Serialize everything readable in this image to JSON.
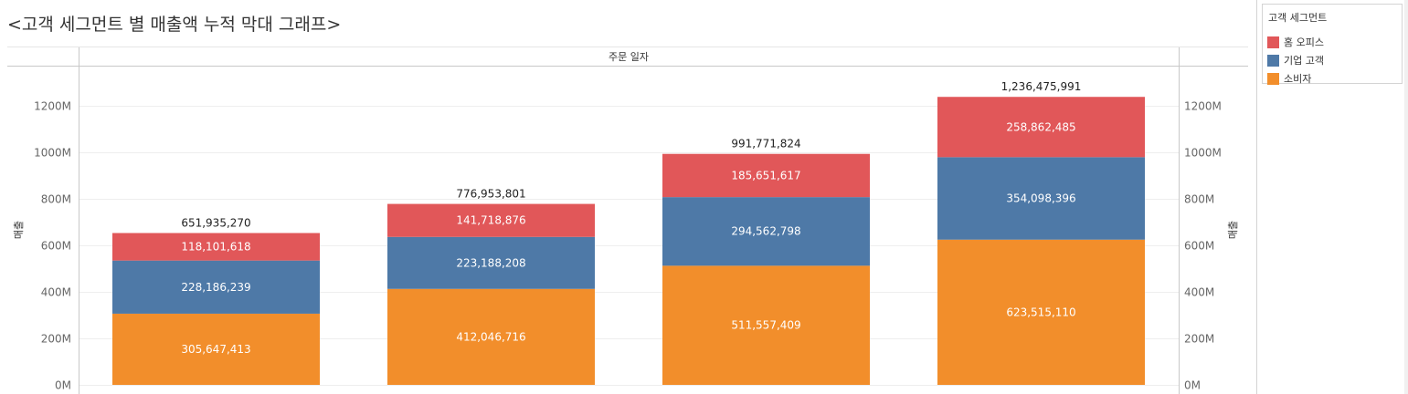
{
  "title": "<고객 세그먼트 별 매출액 누적 막대 그래프>",
  "legend": {
    "title": "고객 세그먼트",
    "items": [
      {
        "label": "홈 오피스",
        "color": "#e15759"
      },
      {
        "label": "기업 고객",
        "color": "#4e79a7"
      },
      {
        "label": "소비자",
        "color": "#f28e2b"
      }
    ]
  },
  "chart_data": {
    "type": "bar",
    "stacked": true,
    "column_header": "주문 일자",
    "ylabel": "매출",
    "ylim": [
      0,
      1300000000
    ],
    "yticks": [
      0,
      200000000,
      400000000,
      600000000,
      800000000,
      1000000000,
      1200000000
    ],
    "ytick_labels": [
      "0M",
      "200M",
      "400M",
      "600M",
      "800M",
      "1000M",
      "1200M"
    ],
    "dual_axis_right": true,
    "grid": true,
    "legend_position": "right",
    "categories": [
      "",
      "",
      "",
      ""
    ],
    "series": [
      {
        "name": "소비자",
        "color": "#f28e2b",
        "values": [
          305647413,
          412046716,
          511557409,
          623515110
        ],
        "labels": [
          "305,647,413",
          "412,046,716",
          "511,557,409",
          "623,515,110"
        ]
      },
      {
        "name": "기업 고객",
        "color": "#4e79a7",
        "values": [
          228186239,
          223188208,
          294562798,
          354098396
        ],
        "labels": [
          "228,186,239",
          "223,188,208",
          "294,562,798",
          "354,098,396"
        ]
      },
      {
        "name": "홈 오피스",
        "color": "#e15759",
        "values": [
          118101618,
          141718876,
          185651617,
          258862485
        ],
        "labels": [
          "118,101,618",
          "141,718,876",
          "185,651,617",
          "258,862,485"
        ]
      }
    ],
    "totals": [
      651935270,
      776953801,
      991771824,
      1236475991
    ],
    "total_labels": [
      "651,935,270",
      "776,953,801",
      "991,771,824",
      "1,236,475,991"
    ]
  }
}
